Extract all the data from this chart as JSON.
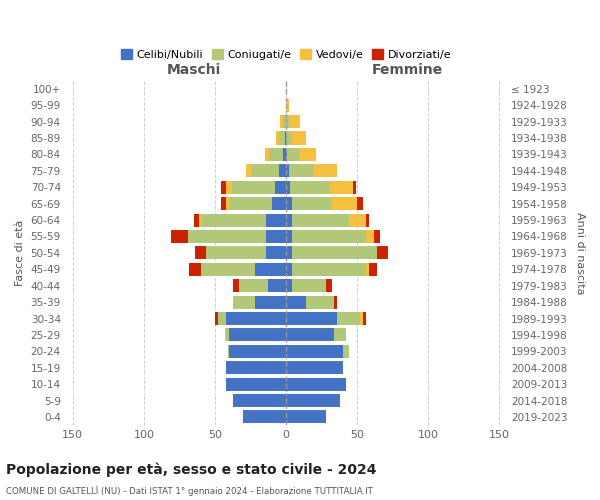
{
  "age_groups": [
    "0-4",
    "5-9",
    "10-14",
    "15-19",
    "20-24",
    "25-29",
    "30-34",
    "35-39",
    "40-44",
    "45-49",
    "50-54",
    "55-59",
    "60-64",
    "65-69",
    "70-74",
    "75-79",
    "80-84",
    "85-89",
    "90-94",
    "95-99",
    "100+"
  ],
  "birth_years": [
    "2019-2023",
    "2014-2018",
    "2009-2013",
    "2004-2008",
    "1999-2003",
    "1994-1998",
    "1989-1993",
    "1984-1988",
    "1979-1983",
    "1974-1978",
    "1969-1973",
    "1964-1968",
    "1959-1963",
    "1954-1958",
    "1949-1953",
    "1944-1948",
    "1939-1943",
    "1934-1938",
    "1929-1933",
    "1924-1928",
    "≤ 1923"
  ],
  "males": {
    "celibi": [
      30,
      37,
      42,
      42,
      40,
      40,
      42,
      22,
      13,
      22,
      14,
      14,
      14,
      10,
      8,
      5,
      2,
      1,
      0,
      0,
      0
    ],
    "coniugati": [
      0,
      0,
      0,
      0,
      1,
      2,
      6,
      15,
      20,
      38,
      42,
      55,
      45,
      30,
      30,
      20,
      10,
      4,
      2,
      0,
      0
    ],
    "vedovi": [
      0,
      0,
      0,
      0,
      0,
      1,
      0,
      0,
      0,
      0,
      0,
      0,
      2,
      2,
      4,
      3,
      3,
      2,
      2,
      0,
      0
    ],
    "divorziati": [
      0,
      0,
      0,
      0,
      0,
      0,
      2,
      0,
      4,
      8,
      8,
      12,
      4,
      4,
      4,
      0,
      0,
      0,
      0,
      0,
      0
    ]
  },
  "females": {
    "nubili": [
      28,
      38,
      42,
      40,
      40,
      34,
      36,
      14,
      4,
      4,
      4,
      4,
      4,
      4,
      3,
      2,
      1,
      0,
      0,
      0,
      0
    ],
    "coniugate": [
      0,
      0,
      0,
      0,
      4,
      8,
      16,
      20,
      24,
      52,
      60,
      52,
      40,
      28,
      28,
      18,
      8,
      4,
      2,
      0,
      0
    ],
    "vedove": [
      0,
      0,
      0,
      0,
      0,
      0,
      2,
      0,
      0,
      2,
      0,
      6,
      12,
      18,
      16,
      16,
      12,
      10,
      8,
      2,
      0
    ],
    "divorziate": [
      0,
      0,
      0,
      0,
      0,
      0,
      2,
      2,
      4,
      6,
      8,
      4,
      2,
      4,
      2,
      0,
      0,
      0,
      0,
      0,
      0
    ]
  },
  "colors": {
    "celibi": "#4472C4",
    "coniugati": "#B0C878",
    "vedovi": "#F5C040",
    "divorziati": "#CC2200"
  },
  "title": "Popolazione per età, sesso e stato civile - 2024",
  "subtitle": "COMUNE DI GALTELLÌ (NU) - Dati ISTAT 1° gennaio 2024 - Elaborazione TUTTITALIA.IT",
  "xlabel_left": "Maschi",
  "xlabel_right": "Femmine",
  "ylabel_left": "Fasce di età",
  "ylabel_right": "Anni di nascita",
  "xlim": 155,
  "xticks": [
    -150,
    -100,
    -50,
    0,
    50,
    100,
    150
  ],
  "xtick_labels": [
    "150",
    "100",
    "50",
    "0",
    "50",
    "100",
    "150"
  ],
  "legend_labels": [
    "Celibi/Nubili",
    "Coniugati/e",
    "Vedovi/e",
    "Divorziati/e"
  ],
  "background_color": "#ffffff",
  "grid_color": "#cccccc"
}
